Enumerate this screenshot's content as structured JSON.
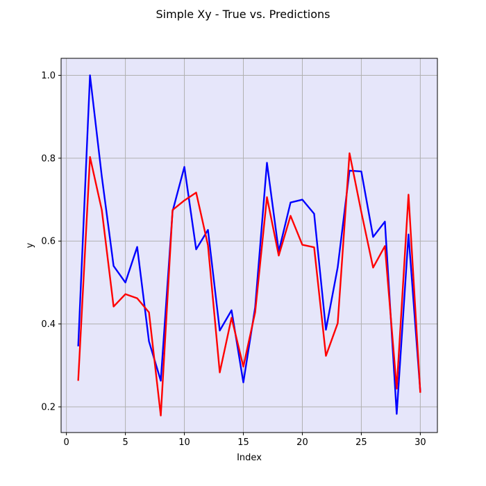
{
  "chart_data": {
    "type": "line",
    "title": "Simple Xy - True vs. Predictions",
    "xlabel": "Index",
    "ylabel": "y",
    "xlim": [
      -0.45,
      31.45
    ],
    "ylim": [
      0.138,
      1.041
    ],
    "xticks": [
      0,
      5,
      10,
      15,
      20,
      25,
      30
    ],
    "yticks": [
      0.2,
      0.4,
      0.6,
      0.8,
      1.0
    ],
    "ytick_labels": [
      "0.2",
      "0.4",
      "0.6",
      "0.8",
      "1.0"
    ],
    "grid": true,
    "background": "#e6e6fa",
    "x": [
      1,
      2,
      3,
      4,
      5,
      6,
      7,
      8,
      9,
      10,
      11,
      12,
      13,
      14,
      15,
      16,
      17,
      18,
      19,
      20,
      21,
      22,
      23,
      24,
      25,
      26,
      27,
      28,
      29,
      30
    ],
    "series": [
      {
        "color": "#0000ff",
        "values": [
          0.346,
          1.0,
          0.756,
          0.54,
          0.5,
          0.586,
          0.358,
          0.263,
          0.672,
          0.779,
          0.58,
          0.627,
          0.384,
          0.433,
          0.259,
          0.44,
          0.789,
          0.575,
          0.693,
          0.7,
          0.666,
          0.386,
          0.537,
          0.77,
          0.768,
          0.61,
          0.647,
          0.183,
          0.616,
          0.237
        ]
      },
      {
        "color": "#ff0000",
        "values": [
          0.263,
          0.803,
          0.675,
          0.442,
          0.472,
          0.462,
          0.428,
          0.179,
          0.675,
          0.698,
          0.717,
          0.59,
          0.283,
          0.415,
          0.297,
          0.428,
          0.706,
          0.565,
          0.661,
          0.591,
          0.585,
          0.323,
          0.402,
          0.812,
          0.67,
          0.536,
          0.588,
          0.244,
          0.712,
          0.234
        ]
      }
    ]
  }
}
